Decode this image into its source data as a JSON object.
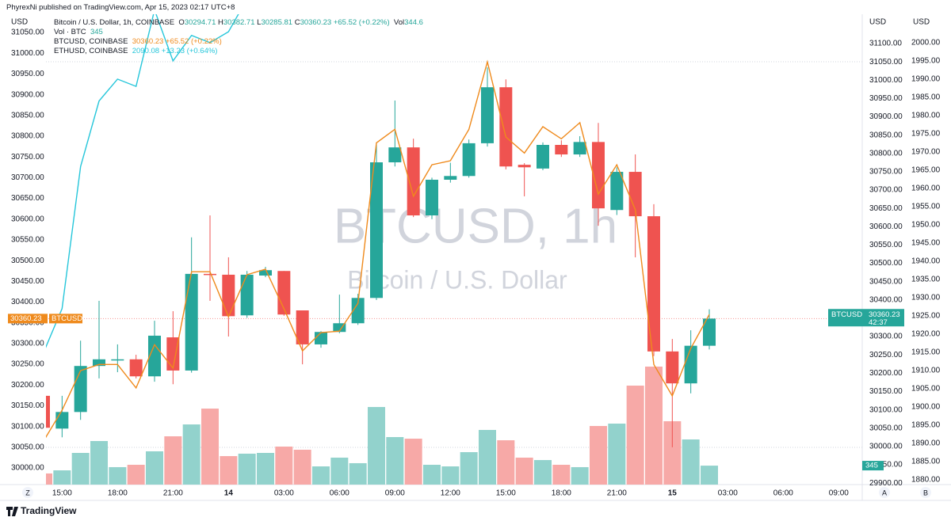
{
  "header": {
    "publisher": "PhyrexNi published on TradingView.com, Apr 15, 2023 02:17 UTC+8"
  },
  "legend": {
    "symbol": "Bitcoin / U.S. Dollar, 1h, COINBASE",
    "o": "O",
    "h": "H",
    "l": "L",
    "c": "C",
    "change": "+65.52 (+0.22%)",
    "vol": "Vol",
    "volume_title": "Vol · BTC",
    "volume_value": "345",
    "btc_change": "+65.52 (+0.22%)",
    "eth_last": "2090.08",
    "eth_change": "+13.23 (+0.64%)"
  },
  "tags": {
    "left_name": "BTCUSD",
    "right_name": "BTCUSD",
    "countdown": "42:37"
  },
  "watermark": {
    "symbol": "BTCUSD, 1h",
    "name": "Bitcoin / U.S. Dollar"
  },
  "footer": {
    "z": "Z",
    "a": "A",
    "b": "B",
    "brand": "TradingView"
  },
  "chart_data": {
    "type": "candlestick",
    "ylabel": "USD",
    "y2label": "USD",
    "y3label": "USD",
    "up_color": "#26a69a",
    "down_color": "#ef5350",
    "volume_up_color": "#92d2cc",
    "volume_down_color": "#f7a9a7",
    "categories": [
      null,
      "15:00",
      null,
      null,
      "18:00",
      null,
      null,
      "21:00",
      null,
      null,
      "14",
      null,
      null,
      "03:00",
      null,
      null,
      "06:00",
      null,
      null,
      "09:00",
      null,
      null,
      "12:00",
      null,
      null,
      "15:00",
      null,
      null,
      "18:00",
      null,
      null,
      "21:00",
      null,
      null,
      "15",
      null,
      null,
      "03:00",
      null,
      null,
      "06:00",
      null,
      null,
      "09:00",
      null
    ],
    "open": [
      30174,
      30095,
      30135,
      30246,
      30260,
      30262,
      30221,
      30315,
      30235,
      30468,
      30466,
      30368,
      30464,
      30475,
      30380,
      30298,
      30328,
      30349,
      30410,
      30737,
      30773,
      30609,
      30695,
      30704,
      30783,
      30918,
      30731,
      30722,
      30779,
      30756,
      30786,
      30622,
      30714,
      30607,
      30281,
      30204,
      30294.71,
      null,
      null,
      null,
      null,
      null,
      null,
      null,
      null
    ],
    "high": [
      30185,
      30174,
      30307,
      30403,
      30298,
      30273,
      30355,
      30378,
      30556,
      30609,
      30508,
      30475,
      30485,
      30475,
      30380,
      30330,
      30418,
      30420,
      30785,
      30886,
      30794,
      30700,
      30736,
      30792,
      30966,
      30937,
      30735,
      30785,
      30790,
      30800,
      30832,
      30725,
      30756,
      30636,
      30311,
      30332,
      30382.71,
      null,
      null,
      null,
      null,
      null,
      null,
      null,
      null
    ],
    "low": [
      30080,
      30074,
      30116,
      30216,
      30231,
      30216,
      30208,
      30202,
      30230,
      30403,
      30317,
      30362,
      30460,
      30367,
      30250,
      30290,
      30325,
      30345,
      30405,
      30727,
      30605,
      30600,
      30688,
      30700,
      30775,
      30720,
      30655,
      30718,
      30750,
      30750,
      30584,
      30610,
      30508,
      30270,
      30050,
      30180,
      30285.81,
      null,
      null,
      null,
      null,
      null,
      null,
      null,
      null
    ],
    "close": [
      30097,
      30135,
      30246,
      30262,
      30262,
      30221,
      30319,
      30235,
      30468,
      30466,
      30366,
      30466,
      30477,
      30370,
      30298,
      30328,
      30349,
      30410,
      30737,
      30773,
      30609,
      30695,
      30704,
      30783,
      30918,
      30727,
      30725,
      30779,
      30756,
      30786,
      30626,
      30714,
      30607,
      30281,
      30204,
      30294.71,
      30360.23,
      null,
      null,
      null,
      null,
      null,
      null,
      null,
      null
    ],
    "volume": [
      202,
      259,
      576,
      792,
      317,
      360,
      605,
      878,
      1094,
      1382,
      518,
      562,
      576,
      691,
      634,
      331,
      490,
      389,
      1411,
      864,
      835,
      360,
      331,
      590,
      994,
      806,
      490,
      446,
      360,
      317,
      1066,
      1109,
      1800,
      2146,
      1152,
      821,
      344.6,
      null,
      null,
      null,
      null,
      null,
      null,
      null,
      null
    ],
    "series": [
      {
        "name": "BTCUSD, COINBASE",
        "color": "#ef8a1c",
        "axis": "y2",
        "values": [
          30015,
          30099,
          30207,
          30224,
          30224,
          30160,
          30278,
          30214,
          30477,
          30477,
          30354,
          30469,
          30484,
          30376,
          30261,
          30311,
          30315,
          30391,
          30829,
          30866,
          30683,
          30769,
          30780,
          30866,
          31050,
          30845,
          30801,
          30873,
          30840,
          30884,
          30689,
          30769,
          30646,
          30224,
          30138,
          30268,
          30360.23,
          null,
          null,
          null,
          null,
          null,
          null,
          null,
          null
        ]
      },
      {
        "name": "ETHUSD, COINBASE",
        "color": "#26c6da",
        "axis": "y3",
        "values": [
          1915,
          1927,
          1966,
          1984,
          1990,
          1988,
          2009,
          1995,
          2002,
          2000,
          2003,
          2012,
          null,
          null,
          null,
          null,
          null,
          null,
          null,
          null,
          null,
          null,
          null,
          null,
          null,
          null,
          null,
          null,
          null,
          null,
          null,
          null,
          null,
          null,
          null,
          null,
          null,
          null,
          null,
          null,
          null,
          null,
          null,
          null,
          null
        ]
      }
    ],
    "ylim": [
      29960,
      31094
    ],
    "yticks": [
      {
        "value": 30000,
        "label": "30000.00"
      },
      {
        "value": 30050,
        "label": "30050.00"
      },
      {
        "value": 30100,
        "label": "30100.00"
      },
      {
        "value": 30150,
        "label": "30150.00"
      },
      {
        "value": 30200,
        "label": "30200.00"
      },
      {
        "value": 30250,
        "label": "30250.00"
      },
      {
        "value": 30300,
        "label": "30300.00"
      },
      {
        "value": 30350,
        "label": "30350.00"
      },
      {
        "value": 30400,
        "label": "30400.00"
      },
      {
        "value": 30450,
        "label": "30450.00"
      },
      {
        "value": 30500,
        "label": "30500.00"
      },
      {
        "value": 30550,
        "label": "30550.00"
      },
      {
        "value": 30600,
        "label": "30600.00"
      },
      {
        "value": 30650,
        "label": "30650.00"
      },
      {
        "value": 30700,
        "label": "30700.00"
      },
      {
        "value": 30750,
        "label": "30750.00"
      },
      {
        "value": 30800,
        "label": "30800.00"
      },
      {
        "value": 30850,
        "label": "30850.00"
      },
      {
        "value": 30900,
        "label": "30900.00"
      },
      {
        "value": 30950,
        "label": "30950.00"
      },
      {
        "value": 31000,
        "label": "31000.00"
      },
      {
        "value": 31050,
        "label": "31050.00"
      }
    ],
    "y2lim": [
      29896,
      31180
    ],
    "y2ticks": [
      {
        "value": 29900,
        "label": "29900.00"
      },
      {
        "value": 29950,
        "label": "29950.00"
      },
      {
        "value": 30000,
        "label": "30000.00"
      },
      {
        "value": 30050,
        "label": "30050.00"
      },
      {
        "value": 30100,
        "label": "30100.00"
      },
      {
        "value": 30150,
        "label": "30150.00"
      },
      {
        "value": 30200,
        "label": "30200.00"
      },
      {
        "value": 30250,
        "label": "30250.00"
      },
      {
        "value": 30300,
        "label": "30300.00"
      },
      {
        "value": 30350,
        "label": "30350.00"
      },
      {
        "value": 30400,
        "label": "30400.00"
      },
      {
        "value": 30450,
        "label": "30450.00"
      },
      {
        "value": 30500,
        "label": "30500.00"
      },
      {
        "value": 30550,
        "label": "30550.00"
      },
      {
        "value": 30600,
        "label": "30600.00"
      },
      {
        "value": 30650,
        "label": "30650.00"
      },
      {
        "value": 30700,
        "label": "30700.00"
      },
      {
        "value": 30750,
        "label": "30750.00"
      },
      {
        "value": 30800,
        "label": "30800.00"
      },
      {
        "value": 30850,
        "label": "30850.00"
      },
      {
        "value": 30900,
        "label": "30900.00"
      },
      {
        "value": 30950,
        "label": "30950.00"
      },
      {
        "value": 31000,
        "label": "31000.00"
      },
      {
        "value": 31050,
        "label": "31050.00"
      },
      {
        "value": 31100,
        "label": "31100.00"
      }
    ],
    "y3lim": [
      1878.7,
      2007.8
    ],
    "y3ticks": [
      {
        "value": 1880,
        "label": "1880.00"
      },
      {
        "value": 1885,
        "label": "1885.00"
      },
      {
        "value": 1890,
        "label": "1890.00"
      },
      {
        "value": 1895,
        "label": "1895.00"
      },
      {
        "value": 1900,
        "label": "1900.00"
      },
      {
        "value": 1905,
        "label": "1905.00"
      },
      {
        "value": 1910,
        "label": "1910.00"
      },
      {
        "value": 1915,
        "label": "1915.00"
      },
      {
        "value": 1920,
        "label": "1920.00"
      },
      {
        "value": 1925,
        "label": "1925.00"
      },
      {
        "value": 1930,
        "label": "1930.00"
      },
      {
        "value": 1935,
        "label": "1935.00"
      },
      {
        "value": 1940,
        "label": "1940.00"
      },
      {
        "value": 1945,
        "label": "1945.00"
      },
      {
        "value": 1950,
        "label": "1950.00"
      },
      {
        "value": 1955,
        "label": "1955.00"
      },
      {
        "value": 1960,
        "label": "1960.00"
      },
      {
        "value": 1965,
        "label": "1965.00"
      },
      {
        "value": 1970,
        "label": "1970.00"
      },
      {
        "value": 1975,
        "label": "1975.00"
      },
      {
        "value": 1980,
        "label": "1980.00"
      },
      {
        "value": 1985,
        "label": "1985.00"
      },
      {
        "value": 1990,
        "label": "1990.00"
      },
      {
        "value": 1995,
        "label": "1995.00"
      },
      {
        "value": 2000,
        "label": "2000.00"
      }
    ],
    "grid": false
  }
}
